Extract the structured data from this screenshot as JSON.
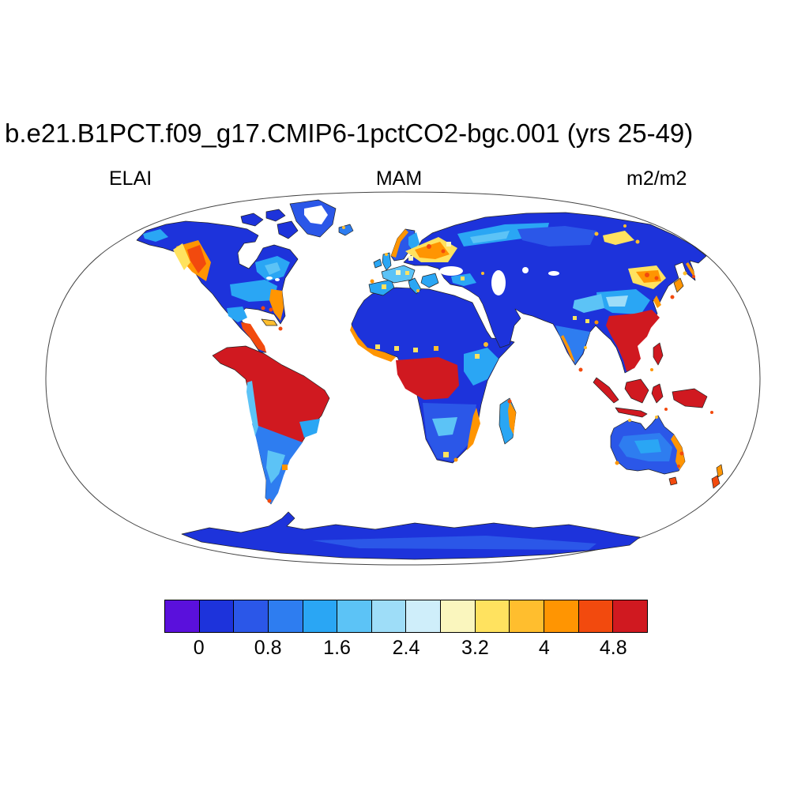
{
  "header": {
    "title": "b.e21.B1PCT.f09_g17.CMIP6-1pctCO2-bgc.001 (yrs 25-49)",
    "variable": "ELAI",
    "season": "MAM",
    "units": "m2/m2"
  },
  "colorbar": {
    "colors": [
      "#5A10DC",
      "#1D33DB",
      "#2B57E8",
      "#2E7DF0",
      "#2AA6F4",
      "#5CC3F6",
      "#9EDDF8",
      "#CFEEFA",
      "#FAF6BE",
      "#FFE25F",
      "#FFBE2E",
      "#FF9502",
      "#F24A0E",
      "#D01920"
    ],
    "tick_labels": [
      "0",
      "0.8",
      "1.6",
      "2.4",
      "3.2",
      "4",
      "4.8"
    ],
    "levels": [
      0,
      0.4,
      0.8,
      1.2,
      1.6,
      2.0,
      2.4,
      2.8,
      3.2,
      3.6,
      4.0,
      4.4,
      4.8
    ]
  },
  "chart_data": {
    "type": "heatmap",
    "title": "b.e21.B1PCT.f09_g17.CMIP6-1pctCO2-bgc.001 (yrs 25-49)",
    "variable": "ELAI",
    "season": "MAM",
    "units": "m2/m2",
    "projection": "robinson-global-map",
    "legend_position": "bottom",
    "colorbar_levels": [
      0,
      0.4,
      0.8,
      1.2,
      1.6,
      2.0,
      2.4,
      2.8,
      3.2,
      3.6,
      4.0,
      4.4,
      4.8
    ],
    "colorbar_tick_labels": [
      "0",
      "0.8",
      "1.6",
      "2.4",
      "3.2",
      "4",
      "4.8"
    ],
    "colorbar_colors": [
      "#5A10DC",
      "#1D33DB",
      "#2B57E8",
      "#2E7DF0",
      "#2AA6F4",
      "#5CC3F6",
      "#9EDDF8",
      "#CFEEFA",
      "#FAF6BE",
      "#FFE25F",
      "#FFBE2E",
      "#FF9502",
      "#F24A0E",
      "#D01920"
    ],
    "regions": [
      {
        "region": "Amazon basin",
        "elai_m2_per_m2": ">4.8"
      },
      {
        "region": "Congo basin",
        "elai_m2_per_m2": ">4.8"
      },
      {
        "region": "Central America and Caribbean",
        "elai_m2_per_m2": "4.4->4.8"
      },
      {
        "region": "Southeast Asia (Indochina, S China)",
        "elai_m2_per_m2": ">4.8"
      },
      {
        "region": "Indonesia and New Guinea",
        "elai_m2_per_m2": ">4.8"
      },
      {
        "region": "Sahara desert",
        "elai_m2_per_m2": "0-0.4"
      },
      {
        "region": "Arabian Peninsula",
        "elai_m2_per_m2": "0-0.4"
      },
      {
        "region": "Boreal Canada and Siberia",
        "elai_m2_per_m2": "0-0.8"
      },
      {
        "region": "British Columbia / Pacific NW hotspot",
        "elai_m2_per_m2": "2.8->4.8"
      },
      {
        "region": "Eastern United States",
        "elai_m2_per_m2": "1.2-2.4"
      },
      {
        "region": "Southeastern US coast",
        "elai_m2_per_m2": "3.2-4.4"
      },
      {
        "region": "Europe",
        "elai_m2_per_m2": "1.6-3.2"
      },
      {
        "region": "European Russia (~60N) hotspot",
        "elai_m2_per_m2": "2.8-4.4"
      },
      {
        "region": "Northeast China / Amur hotspot",
        "elai_m2_per_m2": "2.8->4.8"
      },
      {
        "region": "Japan",
        "elai_m2_per_m2": "3.2-4.4"
      },
      {
        "region": "India interior",
        "elai_m2_per_m2": "0.8-2.0"
      },
      {
        "region": "Indian west coast (Western Ghats)",
        "elai_m2_per_m2": "3.2-4.4"
      },
      {
        "region": "East African highlands",
        "elai_m2_per_m2": "1.6-3.2"
      },
      {
        "region": "Southern Africa",
        "elai_m2_per_m2": "1.2-2.4"
      },
      {
        "region": "Madagascar",
        "elai_m2_per_m2": "1.6-3.6"
      },
      {
        "region": "Southern South America (Argentina/Chile)",
        "elai_m2_per_m2": "0.8-2.4"
      },
      {
        "region": "Central Australia",
        "elai_m2_per_m2": "0.8-1.6"
      },
      {
        "region": "Australian east coast",
        "elai_m2_per_m2": "3.6->4.8"
      },
      {
        "region": "New Zealand",
        "elai_m2_per_m2": "3.6->4.8"
      },
      {
        "region": "Antarctica",
        "elai_m2_per_m2": "0-0.4"
      },
      {
        "region": "Greenland interior",
        "elai_m2_per_m2": "no data (ice)"
      }
    ]
  }
}
